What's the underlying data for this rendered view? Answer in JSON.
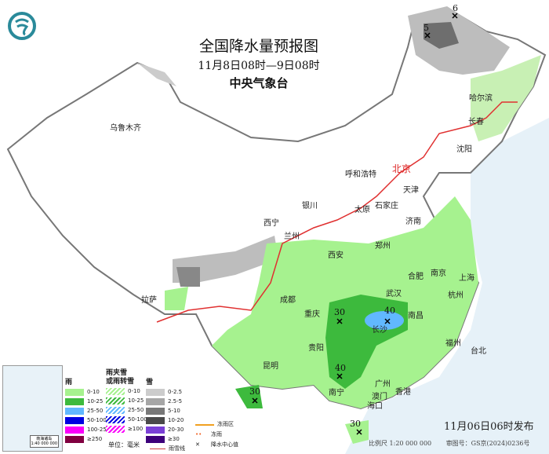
{
  "header": {
    "title": "全国降水量预报图",
    "period": "11月8日08时—9日08时",
    "issuer": "中央气象台",
    "logo": "cma-logo-icon"
  },
  "cities": [
    {
      "name": "乌鲁木齐"
    },
    {
      "name": "哈尔滨"
    },
    {
      "name": "长春"
    },
    {
      "name": "沈阳"
    },
    {
      "name": "呼和浩特"
    },
    {
      "name": "北京",
      "capital": true
    },
    {
      "name": "天津"
    },
    {
      "name": "石家庄"
    },
    {
      "name": "太原"
    },
    {
      "name": "银川"
    },
    {
      "name": "济南"
    },
    {
      "name": "西宁"
    },
    {
      "name": "兰州"
    },
    {
      "name": "郑州"
    },
    {
      "name": "西安"
    },
    {
      "name": "合肥"
    },
    {
      "name": "南京"
    },
    {
      "name": "上海"
    },
    {
      "name": "拉萨"
    },
    {
      "name": "成都"
    },
    {
      "name": "武汉"
    },
    {
      "name": "杭州"
    },
    {
      "name": "重庆"
    },
    {
      "name": "长沙"
    },
    {
      "name": "南昌"
    },
    {
      "name": "福州"
    },
    {
      "name": "贵阳"
    },
    {
      "name": "台北"
    },
    {
      "name": "昆明"
    },
    {
      "name": "南宁"
    },
    {
      "name": "广州"
    },
    {
      "name": "香港"
    },
    {
      "name": "澳门"
    },
    {
      "name": "海口"
    }
  ],
  "precip_centers": [
    "6",
    "5",
    "30",
    "40",
    "40",
    "30",
    "30"
  ],
  "legend": {
    "rain": {
      "title": "雨",
      "items": [
        {
          "label": "0-10",
          "color": "#a6f28f"
        },
        {
          "label": "10-25",
          "color": "#3dba3d"
        },
        {
          "label": "25-50",
          "color": "#61b8ff"
        },
        {
          "label": "50-100",
          "color": "#0000e1"
        },
        {
          "label": "100-250",
          "color": "#fa00fa"
        },
        {
          "label": "≥250",
          "color": "#800040"
        }
      ]
    },
    "mixed": {
      "title": "雨夹雪\n或雨转雪",
      "items": [
        {
          "label": "0-10",
          "color": "#a6f28f"
        },
        {
          "label": "10-25",
          "color": "#3dba3d"
        },
        {
          "label": "25-50",
          "color": "#61b8ff"
        },
        {
          "label": "50-100",
          "color": "#0000e1"
        },
        {
          "label": "≥100",
          "color": "#fa00fa"
        }
      ]
    },
    "snow": {
      "title": "雪",
      "items": [
        {
          "label": "0-2.5",
          "color": "#cccccc"
        },
        {
          "label": "2.5-5",
          "color": "#a6a6a6"
        },
        {
          "label": "5-10",
          "color": "#787878"
        },
        {
          "label": "10-20",
          "color": "#4a4a4a"
        },
        {
          "label": "20-30",
          "color": "#7a3fd6"
        },
        {
          "label": "≥30",
          "color": "#3d007a"
        }
      ]
    },
    "unit": "单位：毫米",
    "freezing_rain_zone": "冻雨区",
    "freezing_rain": "冻雨",
    "rain_snow_line": "雨雪线",
    "center_value": "降水中心值"
  },
  "inset": {
    "label": "南海诸岛",
    "scale": "1:40 000 000"
  },
  "issue_time": "11月06日06时发布",
  "footer": {
    "scale": "比例尺 1:20 000 000",
    "approval": "审图号：GS京(2024)0236号"
  }
}
